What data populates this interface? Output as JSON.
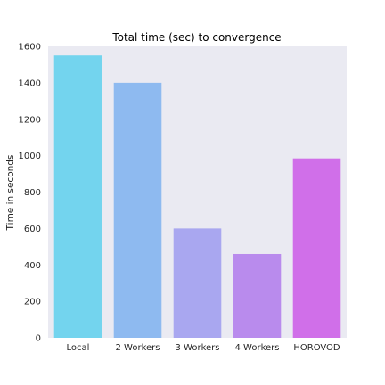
{
  "chart_data": {
    "type": "bar",
    "title": "Total time (sec) to convergence",
    "xlabel": "",
    "ylabel": "Time in seconds",
    "categories": [
      "Local",
      "2 Workers",
      "3 Workers",
      "4 Workers",
      "HOROVOD"
    ],
    "values": [
      1550,
      1400,
      600,
      460,
      985
    ],
    "bar_colors": [
      "#73d4ee",
      "#8ebaf0",
      "#a9a7f0",
      "#b98bed",
      "#d06fe9"
    ],
    "ylim": [
      0,
      1600
    ],
    "yticks": [
      0,
      200,
      400,
      600,
      800,
      1000,
      1200,
      1400,
      1600
    ],
    "grid": false,
    "background": "#eaeaf2"
  }
}
